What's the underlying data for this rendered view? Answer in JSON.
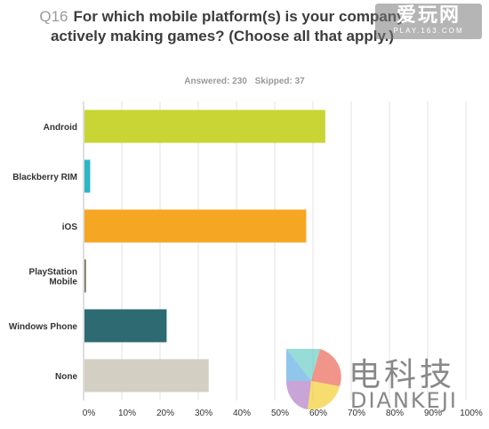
{
  "header": {
    "question_number": "Q16",
    "question_text": "For which mobile platform(s) is your company actively making games? (Choose all that apply.)",
    "answered": "Answered: 230",
    "skipped": "Skipped: 37"
  },
  "watermark_top": {
    "big": "爱玩网",
    "small": "PLAY.163.COM"
  },
  "watermark_bottom": {
    "cn": "电科技",
    "en": "DIANKEJI"
  },
  "colors": {
    "android": "#c8d534",
    "blackberry": "#2cb6c6",
    "ios": "#f5a623",
    "playstation": "#7a6e5e",
    "windows": "#2e6a72",
    "none": "#d3d0c3"
  },
  "chart_data": {
    "type": "bar",
    "orientation": "horizontal",
    "categories": [
      "Android",
      "Blackberry RIM",
      "iOS",
      "PlayStation Mobile",
      "Windows Phone",
      "None"
    ],
    "values": [
      63,
      1.5,
      58,
      0.4,
      21.5,
      32.5
    ],
    "unit": "%",
    "xlim": [
      0,
      100
    ],
    "x_ticks": [
      "0%",
      "10%",
      "20%",
      "30%",
      "40%",
      "50%",
      "60%",
      "70%",
      "80%",
      "90%",
      "100%"
    ],
    "grid": true,
    "title": "For which mobile platform(s) is your company actively making games? (Choose all that apply.)"
  }
}
